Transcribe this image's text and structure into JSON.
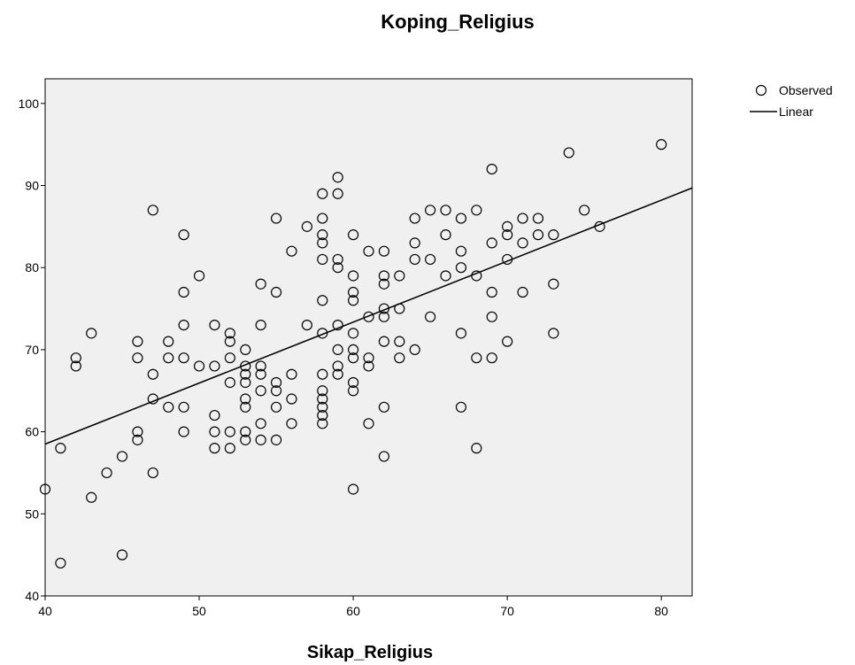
{
  "chart_data": {
    "type": "scatter",
    "title": "Koping_Religius",
    "xlabel": "Sikap_Religius",
    "ylabel": "",
    "xlim": [
      40,
      82
    ],
    "ylim": [
      40,
      103
    ],
    "xticks": [
      40,
      50,
      60,
      70,
      80
    ],
    "yticks": [
      40,
      50,
      60,
      70,
      80,
      90,
      100
    ],
    "grid": false,
    "legend_position": "top-right, outside plot",
    "colors": {
      "plot_background": "#f0f0f0",
      "marker": "#000000",
      "line": "#000000"
    },
    "legend": [
      {
        "label": "Observed",
        "symbol": "circle-icon"
      },
      {
        "label": "Linear",
        "symbol": "line-icon"
      }
    ],
    "series": [
      {
        "name": "Observed",
        "kind": "scatter",
        "points": [
          [
            40,
            53
          ],
          [
            41,
            58
          ],
          [
            41,
            44
          ],
          [
            42,
            69
          ],
          [
            42,
            68
          ],
          [
            43,
            72
          ],
          [
            43,
            52
          ],
          [
            44,
            55
          ],
          [
            45,
            57
          ],
          [
            45,
            45
          ],
          [
            46,
            71
          ],
          [
            46,
            69
          ],
          [
            46,
            60
          ],
          [
            46,
            59
          ],
          [
            47,
            87
          ],
          [
            47,
            67
          ],
          [
            47,
            64
          ],
          [
            47,
            55
          ],
          [
            48,
            71
          ],
          [
            48,
            69
          ],
          [
            48,
            63
          ],
          [
            49,
            84
          ],
          [
            49,
            77
          ],
          [
            49,
            73
          ],
          [
            49,
            69
          ],
          [
            49,
            63
          ],
          [
            49,
            60
          ],
          [
            50,
            79
          ],
          [
            50,
            68
          ],
          [
            51,
            73
          ],
          [
            51,
            68
          ],
          [
            51,
            62
          ],
          [
            51,
            60
          ],
          [
            51,
            58
          ],
          [
            52,
            72
          ],
          [
            52,
            71
          ],
          [
            52,
            69
          ],
          [
            52,
            66
          ],
          [
            52,
            60
          ],
          [
            52,
            58
          ],
          [
            53,
            70
          ],
          [
            53,
            68
          ],
          [
            53,
            67
          ],
          [
            53,
            66
          ],
          [
            53,
            64
          ],
          [
            53,
            63
          ],
          [
            53,
            60
          ],
          [
            53,
            59
          ],
          [
            54,
            78
          ],
          [
            54,
            73
          ],
          [
            54,
            68
          ],
          [
            54,
            67
          ],
          [
            54,
            65
          ],
          [
            54,
            61
          ],
          [
            54,
            59
          ],
          [
            55,
            86
          ],
          [
            55,
            77
          ],
          [
            55,
            66
          ],
          [
            55,
            65
          ],
          [
            55,
            63
          ],
          [
            55,
            59
          ],
          [
            56,
            82
          ],
          [
            56,
            67
          ],
          [
            56,
            64
          ],
          [
            56,
            61
          ],
          [
            57,
            85
          ],
          [
            57,
            73
          ],
          [
            58,
            89
          ],
          [
            58,
            86
          ],
          [
            58,
            84
          ],
          [
            58,
            83
          ],
          [
            58,
            81
          ],
          [
            58,
            76
          ],
          [
            58,
            72
          ],
          [
            58,
            67
          ],
          [
            58,
            65
          ],
          [
            58,
            64
          ],
          [
            58,
            63
          ],
          [
            58,
            62
          ],
          [
            58,
            61
          ],
          [
            59,
            91
          ],
          [
            59,
            89
          ],
          [
            59,
            81
          ],
          [
            59,
            80
          ],
          [
            59,
            73
          ],
          [
            59,
            70
          ],
          [
            59,
            68
          ],
          [
            59,
            67
          ],
          [
            60,
            84
          ],
          [
            60,
            79
          ],
          [
            60,
            77
          ],
          [
            60,
            76
          ],
          [
            60,
            72
          ],
          [
            60,
            70
          ],
          [
            60,
            69
          ],
          [
            60,
            66
          ],
          [
            60,
            65
          ],
          [
            60,
            53
          ],
          [
            61,
            82
          ],
          [
            61,
            74
          ],
          [
            61,
            69
          ],
          [
            61,
            68
          ],
          [
            61,
            61
          ],
          [
            62,
            82
          ],
          [
            62,
            79
          ],
          [
            62,
            78
          ],
          [
            62,
            75
          ],
          [
            62,
            74
          ],
          [
            62,
            71
          ],
          [
            62,
            63
          ],
          [
            62,
            57
          ],
          [
            63,
            79
          ],
          [
            63,
            75
          ],
          [
            63,
            71
          ],
          [
            63,
            69
          ],
          [
            64,
            86
          ],
          [
            64,
            83
          ],
          [
            64,
            81
          ],
          [
            64,
            70
          ],
          [
            65,
            87
          ],
          [
            65,
            81
          ],
          [
            65,
            74
          ],
          [
            66,
            87
          ],
          [
            66,
            84
          ],
          [
            66,
            79
          ],
          [
            67,
            86
          ],
          [
            67,
            82
          ],
          [
            67,
            80
          ],
          [
            67,
            72
          ],
          [
            67,
            63
          ],
          [
            68,
            87
          ],
          [
            68,
            79
          ],
          [
            68,
            69
          ],
          [
            68,
            58
          ],
          [
            69,
            92
          ],
          [
            69,
            83
          ],
          [
            69,
            77
          ],
          [
            69,
            74
          ],
          [
            69,
            69
          ],
          [
            70,
            85
          ],
          [
            70,
            84
          ],
          [
            70,
            81
          ],
          [
            70,
            71
          ],
          [
            71,
            86
          ],
          [
            71,
            83
          ],
          [
            71,
            77
          ],
          [
            72,
            86
          ],
          [
            72,
            84
          ],
          [
            73,
            84
          ],
          [
            73,
            78
          ],
          [
            73,
            72
          ],
          [
            74,
            94
          ],
          [
            75,
            87
          ],
          [
            76,
            85
          ],
          [
            80,
            95
          ]
        ]
      },
      {
        "name": "Linear",
        "kind": "line",
        "x": [
          40,
          82
        ],
        "y": [
          58.5,
          89.7
        ]
      }
    ]
  }
}
